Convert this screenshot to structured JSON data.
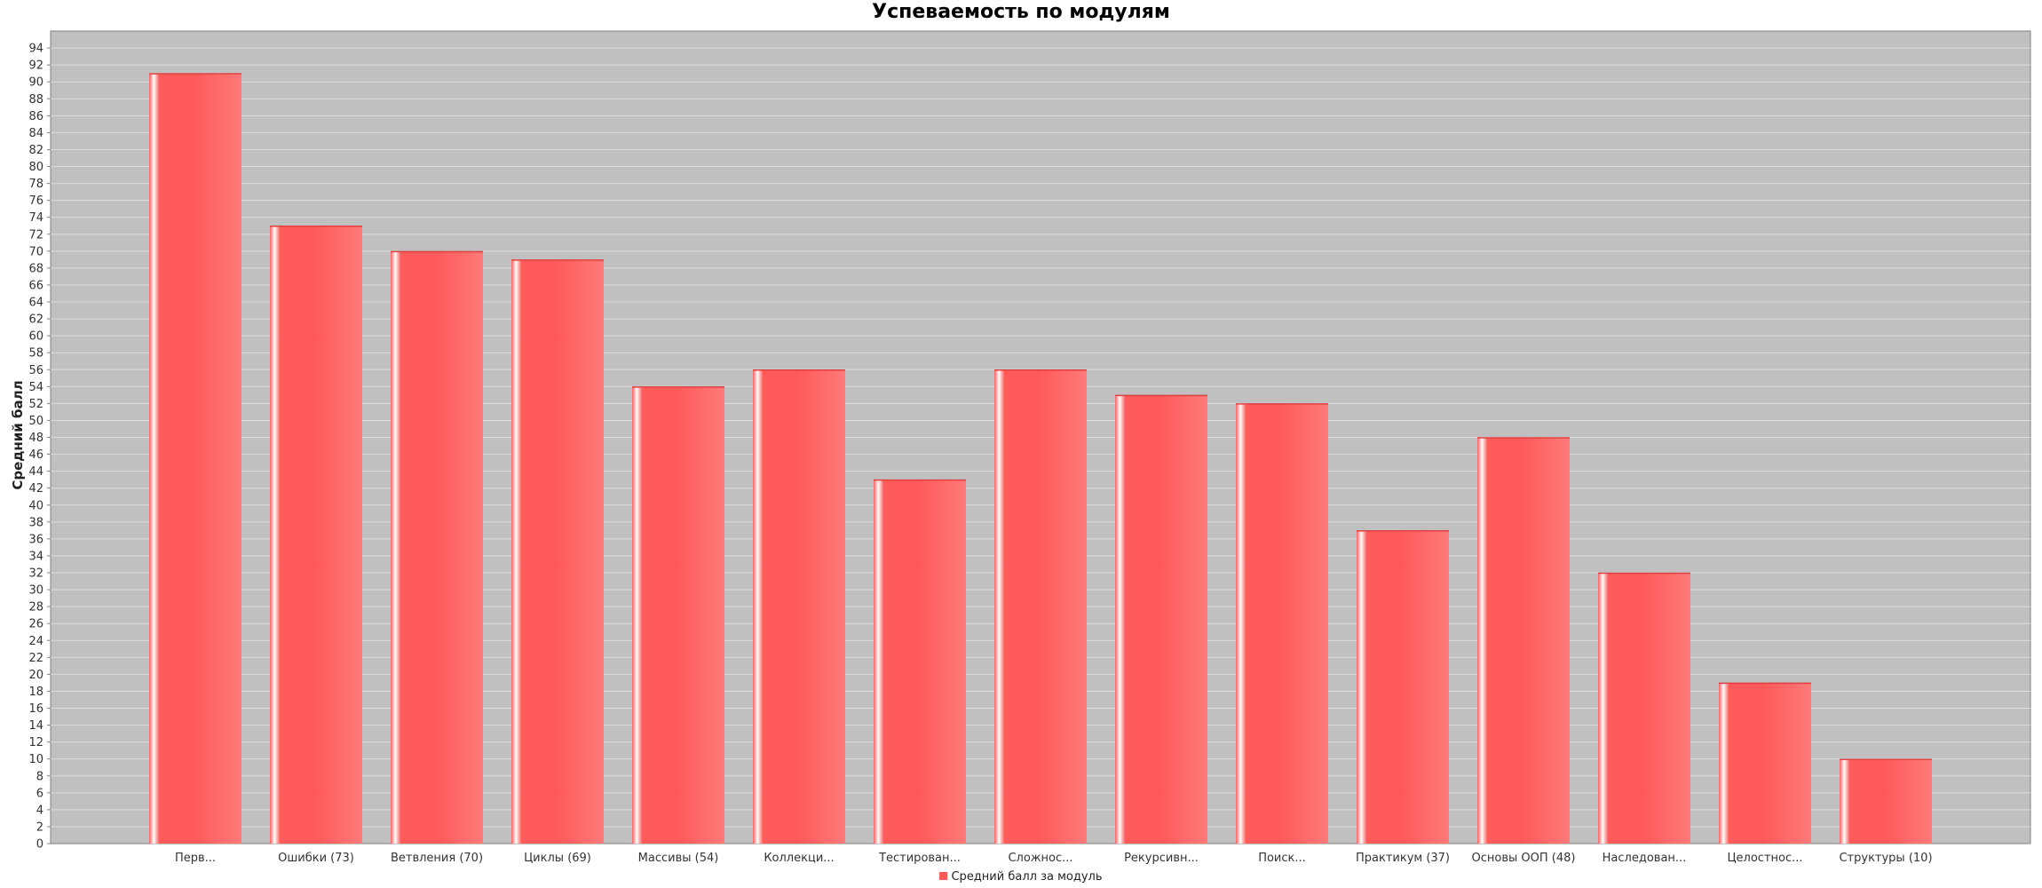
{
  "chart_data": {
    "type": "bar",
    "title": "Успеваемость по модулям",
    "ylabel": "Средний балл",
    "xlabel": "",
    "ylim": [
      0,
      96
    ],
    "ytick_step": 2,
    "grid": true,
    "legend_position": "bottom",
    "bar_color": "#ff5a5a",
    "plot_background": "#c0c0c0",
    "categories": [
      "Перв...",
      "Ошибки (73)",
      "Ветвления (70)",
      "Циклы (69)",
      "Массивы (54)",
      "Коллекци...",
      "Тестирован...",
      "Сложнос...",
      "Рекурсивн...",
      "Поиск...",
      "Практикум (37)",
      "Основы ООП (48)",
      "Наследован...",
      "Целостнос...",
      "Структуры (10)"
    ],
    "series": [
      {
        "name": "Средний балл за модуль",
        "values": [
          91,
          73,
          70,
          69,
          54,
          56,
          43,
          56,
          53,
          52,
          37,
          48,
          32,
          19,
          10
        ]
      }
    ]
  }
}
